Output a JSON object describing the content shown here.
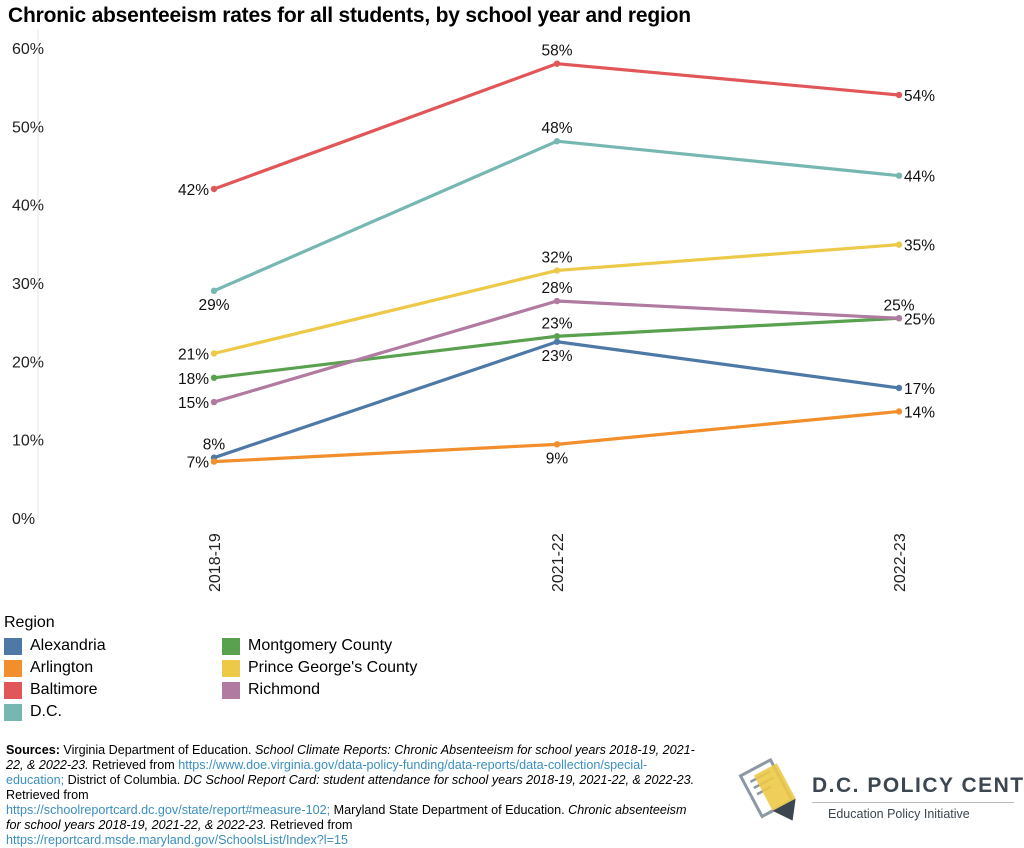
{
  "title": "Chronic absenteeism rates for all students, by school year and region",
  "chart_data": {
    "type": "line",
    "categories": [
      "2018-19",
      "2021-22",
      "2022-23"
    ],
    "ylim": [
      0,
      60
    ],
    "yticks": [
      "0%",
      "10%",
      "20%",
      "30%",
      "40%",
      "50%",
      "60%"
    ],
    "grid": false,
    "legend_title": "Region",
    "legend_placement": "bottom-left",
    "series": [
      {
        "name": "Alexandria",
        "color": "#4e79a7",
        "values": [
          7.7,
          22.5,
          16.6
        ],
        "labels": [
          "8%",
          "23%",
          "17%"
        ],
        "label_pos": [
          "above",
          "below",
          "right"
        ]
      },
      {
        "name": "Arlington",
        "color": "#f28e2b",
        "values": [
          7.2,
          9.4,
          13.6
        ],
        "labels": [
          "7%",
          "9%",
          "14%"
        ],
        "label_pos": [
          "left",
          "below",
          "right"
        ]
      },
      {
        "name": "Baltimore",
        "color": "#e15759",
        "values": [
          42.0,
          58.0,
          54.0
        ],
        "labels": [
          "42%",
          "58%",
          "54%"
        ],
        "label_pos": [
          "left",
          "above",
          "right"
        ]
      },
      {
        "name": "D.C.",
        "color": "#76b7b2",
        "values": [
          29.0,
          48.1,
          43.7
        ],
        "labels": [
          "29%",
          "48%",
          "44%"
        ],
        "label_pos": [
          "below",
          "above",
          "right"
        ]
      },
      {
        "name": "Montgomery County",
        "color": "#59a14f",
        "values": [
          17.9,
          23.2,
          25.5
        ],
        "labels": [
          "18%",
          "23%",
          "25%"
        ],
        "label_pos": [
          "left",
          "above",
          "right"
        ]
      },
      {
        "name": "Prince George's County",
        "color": "#edc948",
        "values": [
          21.0,
          31.6,
          34.9
        ],
        "labels": [
          "21%",
          "32%",
          "35%"
        ],
        "label_pos": [
          "left",
          "above",
          "right"
        ]
      },
      {
        "name": "Richmond",
        "color": "#b07aa1",
        "values": [
          14.8,
          27.7,
          25.5
        ],
        "labels": [
          "15%",
          "28%",
          "25%"
        ],
        "label_pos": [
          "left",
          "above",
          "above"
        ]
      }
    ]
  },
  "sources": {
    "label": "Sources:",
    "p1": " Virginia Department of Education. ",
    "p2": "School Climate Reports: Chronic Absenteeism for school years 2018-19, 2021-22, & 2022-23.",
    "p3": " Retrieved from ",
    "p4": "https://www.doe.virginia.gov/data-policy-funding/data-reports/data-collection/special-education;",
    "p5": " District of Columbia. ",
    "p6": "DC School Report Card: student attendance for school years 2018-19, 2021-22, & 2022-23.",
    "p7": " Retrieved from ",
    "p8": "https://schoolreportcard.dc.gov/state/report#measure-102;",
    "p9": " Maryland State Department of Education. ",
    "p10": "Chronic absenteeism for school years 2018-19, 2021-22, & 2022-23.",
    "p11": " Retrieved from ",
    "p12": "https://reportcard.msde.maryland.gov/SchoolsList/Index?l=15"
  },
  "logo": {
    "name": "D.C. POLICY CENTER",
    "subtitle": "Education Policy Initiative"
  }
}
